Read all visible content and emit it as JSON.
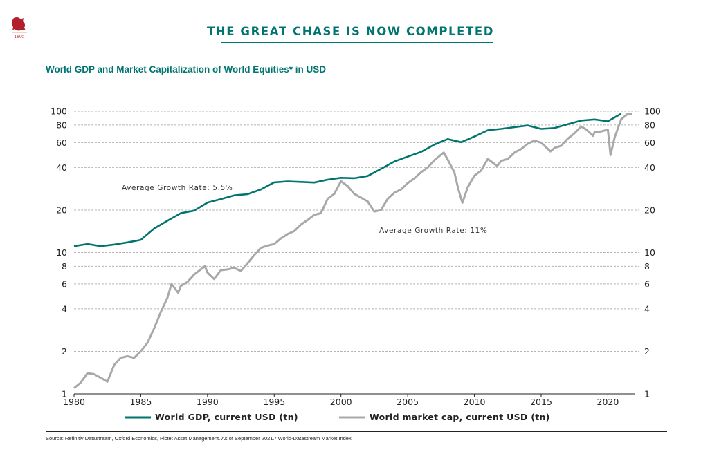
{
  "header": {
    "headline": "THE GREAT CHASE IS NOW COMPLETED",
    "logo_year": "1805"
  },
  "chart_data": {
    "type": "line",
    "title": "World GDP and Market Capitalization of World Equities* in USD",
    "y_scale": "log",
    "ylim": [
      1,
      100
    ],
    "xlim": [
      1980,
      2022
    ],
    "y_ticks": [
      "1",
      "2",
      "4",
      "6",
      "8",
      "10",
      "20",
      "40",
      "60",
      "80",
      "100"
    ],
    "x_ticks": [
      "1980",
      "1985",
      "1990",
      "1995",
      "2000",
      "2005",
      "2010",
      "2015",
      "2020"
    ],
    "grid": "horizontal dashed",
    "legend_position": "bottom",
    "annotations": [
      "Average Growth Rate: 5.5%",
      "Average Growth Rate: 11%"
    ],
    "series": [
      {
        "name": "World GDP, current USD (tn)",
        "color": "#00756f",
        "points": [
          [
            1980,
            11.1
          ],
          [
            1981,
            11.5
          ],
          [
            1982,
            11.1
          ],
          [
            1983,
            11.4
          ],
          [
            1984,
            11.8
          ],
          [
            1985,
            12.3
          ],
          [
            1986,
            14.8
          ],
          [
            1987,
            16.8
          ],
          [
            1988,
            19.0
          ],
          [
            1989,
            19.8
          ],
          [
            1990,
            22.6
          ],
          [
            1991,
            23.9
          ],
          [
            1992,
            25.4
          ],
          [
            1993,
            25.9
          ],
          [
            1994,
            28.0
          ],
          [
            1995,
            31.4
          ],
          [
            1996,
            31.9
          ],
          [
            1997,
            31.6
          ],
          [
            1998,
            31.3
          ],
          [
            1999,
            32.8
          ],
          [
            2000,
            33.8
          ],
          [
            2001,
            33.6
          ],
          [
            2002,
            34.8
          ],
          [
            2003,
            39.1
          ],
          [
            2004,
            44.1
          ],
          [
            2005,
            47.7
          ],
          [
            2006,
            51.5
          ],
          [
            2007,
            58.1
          ],
          [
            2008,
            63.5
          ],
          [
            2009,
            60.4
          ],
          [
            2010,
            66.2
          ],
          [
            2011,
            73.4
          ],
          [
            2012,
            75.0
          ],
          [
            2013,
            77.2
          ],
          [
            2014,
            79.3
          ],
          [
            2015,
            75.0
          ],
          [
            2016,
            76.1
          ],
          [
            2017,
            80.9
          ],
          [
            2018,
            86.0
          ],
          [
            2019,
            87.6
          ],
          [
            2020,
            84.9
          ],
          [
            2021,
            96.1
          ]
        ]
      },
      {
        "name": "World market cap, current USD (tn)",
        "color": "#a8a8a8",
        "points": [
          [
            1980,
            1.1
          ],
          [
            1980.5,
            1.2
          ],
          [
            1981,
            1.4
          ],
          [
            1981.5,
            1.38
          ],
          [
            1982,
            1.3
          ],
          [
            1982.5,
            1.22
          ],
          [
            1983,
            1.6
          ],
          [
            1983.5,
            1.8
          ],
          [
            1984,
            1.85
          ],
          [
            1984.5,
            1.8
          ],
          [
            1985,
            2.0
          ],
          [
            1985.5,
            2.3
          ],
          [
            1986,
            2.9
          ],
          [
            1986.5,
            3.8
          ],
          [
            1987,
            4.8
          ],
          [
            1987.3,
            6.0
          ],
          [
            1987.8,
            5.2
          ],
          [
            1988,
            5.8
          ],
          [
            1988.5,
            6.2
          ],
          [
            1989,
            7.0
          ],
          [
            1989.8,
            8.0
          ],
          [
            1990,
            7.2
          ],
          [
            1990.5,
            6.5
          ],
          [
            1991,
            7.5
          ],
          [
            1991.5,
            7.6
          ],
          [
            1992,
            7.8
          ],
          [
            1992.5,
            7.4
          ],
          [
            1993,
            8.4
          ],
          [
            1993.5,
            9.6
          ],
          [
            1994,
            10.8
          ],
          [
            1994.5,
            11.2
          ],
          [
            1995,
            11.5
          ],
          [
            1995.5,
            12.6
          ],
          [
            1996,
            13.5
          ],
          [
            1996.5,
            14.2
          ],
          [
            1997,
            15.8
          ],
          [
            1997.5,
            17.0
          ],
          [
            1998,
            18.5
          ],
          [
            1998.5,
            19.0
          ],
          [
            1999,
            24.0
          ],
          [
            1999.5,
            26.0
          ],
          [
            2000,
            32.0
          ],
          [
            2000.5,
            29.5
          ],
          [
            2001,
            26.0
          ],
          [
            2001.5,
            24.5
          ],
          [
            2002,
            23.0
          ],
          [
            2002.5,
            19.5
          ],
          [
            2003,
            20.0
          ],
          [
            2003.5,
            24.0
          ],
          [
            2004,
            26.5
          ],
          [
            2004.5,
            28.0
          ],
          [
            2005,
            31.0
          ],
          [
            2005.5,
            33.5
          ],
          [
            2006,
            37.0
          ],
          [
            2006.5,
            40.0
          ],
          [
            2007,
            45.0
          ],
          [
            2007.7,
            51.0
          ],
          [
            2008,
            45.5
          ],
          [
            2008.5,
            37.0
          ],
          [
            2008.8,
            28.0
          ],
          [
            2009.1,
            22.5
          ],
          [
            2009.5,
            29.0
          ],
          [
            2010,
            35.0
          ],
          [
            2010.5,
            38.0
          ],
          [
            2011,
            46.0
          ],
          [
            2011.7,
            41.0
          ],
          [
            2012,
            44.5
          ],
          [
            2012.5,
            46.0
          ],
          [
            2013,
            51.0
          ],
          [
            2013.5,
            54.0
          ],
          [
            2014,
            59.0
          ],
          [
            2014.5,
            62.0
          ],
          [
            2015,
            60.0
          ],
          [
            2015.7,
            52.0
          ],
          [
            2016,
            55.0
          ],
          [
            2016.5,
            57.0
          ],
          [
            2017,
            64.0
          ],
          [
            2017.5,
            70.0
          ],
          [
            2018,
            78.0
          ],
          [
            2018.4,
            74.0
          ],
          [
            2018.9,
            67.0
          ],
          [
            2019,
            71.0
          ],
          [
            2019.5,
            72.0
          ],
          [
            2020,
            74.0
          ],
          [
            2020.2,
            49.0
          ],
          [
            2020.5,
            65.0
          ],
          [
            2021,
            88.0
          ],
          [
            2021.5,
            96.0
          ],
          [
            2021.8,
            95.0
          ]
        ]
      }
    ]
  },
  "footer": {
    "source": "Source: Refinitiv Datastream, Oxford Economics, Pictet Asset Management. As of September 2021.* World-Datastream Market Index"
  }
}
